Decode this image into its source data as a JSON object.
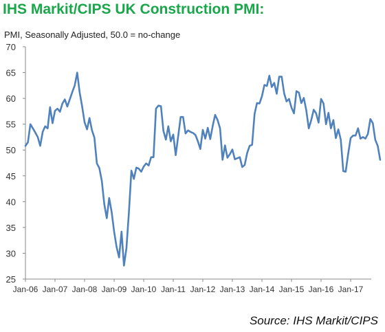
{
  "title": "IHS Markit/CIPS UK Construction PMI:",
  "subtitle": "PMI, Seasonally Adjusted, 50.0 = no-change",
  "source": "Source: IHS Markit/CIPS",
  "colors": {
    "title": "#1aa64a",
    "series": "#4f81bd",
    "axis": "#888888"
  },
  "chart_data": {
    "type": "line",
    "title": "IHS Markit/CIPS UK Construction PMI:",
    "ylabel": "PMI, Seasonally Adjusted, 50.0 = no-change",
    "xlabel": "",
    "ylim": [
      25,
      70
    ],
    "yticks": [
      25,
      30,
      35,
      40,
      45,
      50,
      55,
      60,
      65,
      70
    ],
    "xtick_labels": [
      "Jan-06",
      "Jan-07",
      "Jan-08",
      "Jan-09",
      "Jan-10",
      "Jan-11",
      "Jan-12",
      "Jan-13",
      "Jan-14",
      "Jan-15",
      "Jan-16",
      "Jan-17"
    ],
    "x_start": "Jan-06",
    "x_end": "Jun-17",
    "grid": false,
    "series": [
      {
        "name": "",
        "values": [
          50.8,
          51.5,
          55.0,
          54.2,
          53.4,
          52.5,
          50.8,
          53.5,
          54.6,
          54.2,
          58.3,
          55.2,
          57.6,
          58.0,
          57.4,
          59.0,
          59.8,
          58.4,
          59.8,
          61.2,
          62.5,
          65.0,
          61.2,
          58.5,
          55.4,
          54.0,
          56.2,
          53.8,
          52.4,
          47.4,
          46.5,
          44.0,
          39.5,
          36.8,
          40.7,
          38.0,
          34.2,
          31.2,
          29.2,
          34.2,
          27.6,
          31.0,
          37.9,
          46.0,
          44.4,
          46.6,
          46.4,
          45.8,
          46.8,
          47.4,
          47.0,
          48.6,
          48.6,
          58.0,
          58.6,
          58.5,
          53.7,
          52.0,
          54.6,
          51.7,
          53.0,
          49.0,
          52.7,
          56.4,
          56.4,
          53.2,
          53.8,
          53.5,
          53.3,
          52.9,
          51.7,
          50.2,
          53.9,
          52.2,
          54.3,
          52.1,
          54.6,
          56.8,
          55.8,
          54.2,
          48.1,
          50.9,
          48.5,
          49.2,
          50.1,
          48.2,
          48.4,
          48.6,
          46.7,
          47.1,
          49.4,
          50.8,
          51.0,
          57.0,
          59.1,
          59.0,
          60.4,
          62.6,
          62.4,
          64.4,
          62.2,
          63.0,
          60.9,
          64.2,
          64.2,
          61.0,
          59.4,
          59.9,
          58.2,
          57.1,
          61.4,
          61.1,
          59.1,
          60.1,
          57.7,
          54.2,
          55.8,
          57.8,
          57.1,
          55.3,
          59.9,
          59.0,
          55.0,
          57.2,
          54.2,
          55.8,
          52.3,
          54.0,
          52.0,
          45.9,
          45.8,
          49.2,
          52.3,
          52.8,
          52.8,
          54.2,
          52.2,
          52.5,
          52.2,
          53.1,
          56.0,
          55.2,
          52.0,
          50.8,
          48.1
        ]
      }
    ]
  }
}
